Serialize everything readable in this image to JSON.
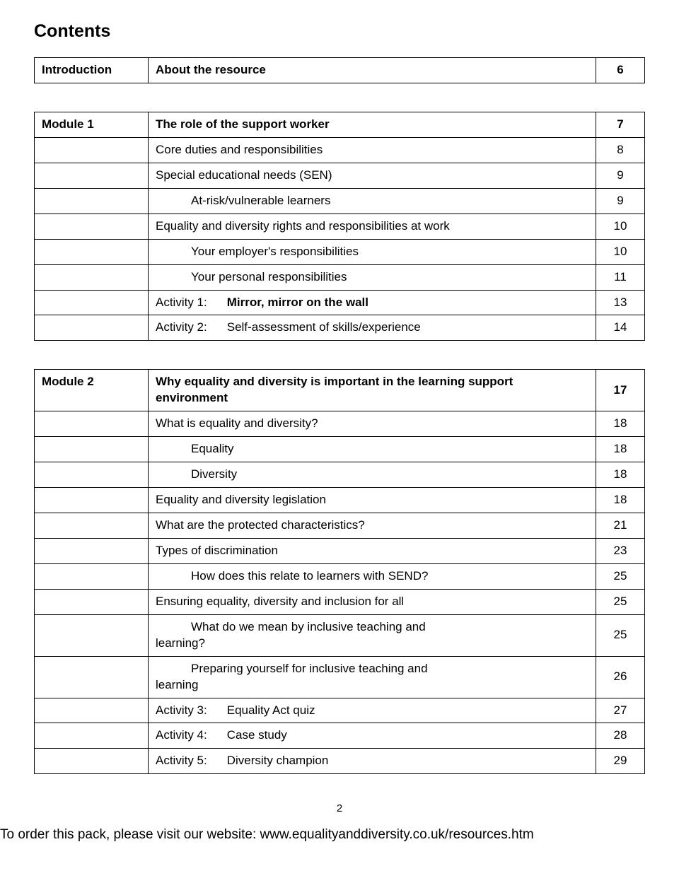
{
  "title": "Contents",
  "intro": {
    "label": "Introduction",
    "text": "About the resource",
    "page": "6"
  },
  "module1": {
    "label": "Module 1",
    "heading": "The role of the support worker",
    "heading_page": "7",
    "rows": [
      {
        "text": "Core duties and responsibilities",
        "page": "8",
        "indent": 0
      },
      {
        "text": "Special educational needs (SEN)",
        "page": "9",
        "indent": 0
      },
      {
        "text": "At-risk/vulnerable learners",
        "page": "9",
        "indent": 1
      },
      {
        "text": "Equality and diversity rights and responsibilities at work",
        "page": "10",
        "indent": 0
      },
      {
        "text": "Your employer's responsibilities",
        "page": "10",
        "indent": 1
      },
      {
        "text": "Your personal responsibilities",
        "page": "11",
        "indent": 1
      },
      {
        "activity_label": "Activity 1:",
        "activity_text": "Mirror, mirror on the wall",
        "page": "13"
      },
      {
        "activity_label": "Activity 2:",
        "activity_text": "Self-assessment of skills/experience",
        "page": "14"
      }
    ]
  },
  "module2": {
    "label": "Module 2",
    "heading": "Why equality and diversity is important in the learning support environment",
    "heading_page": "17",
    "rows": [
      {
        "text": "What is equality and diversity?",
        "page": "18",
        "indent": 0
      },
      {
        "text": "Equality",
        "page": "18",
        "indent": 1
      },
      {
        "text": "Diversity",
        "page": "18",
        "indent": 1
      },
      {
        "text": "Equality and diversity legislation",
        "page": "18",
        "indent": 0
      },
      {
        "text": "What are the protected characteristics?",
        "page": "21",
        "indent": 0
      },
      {
        "text": "Types of discrimination",
        "page": "23",
        "indent": 0
      },
      {
        "text": "How does this relate to learners with SEND?",
        "page": "25",
        "indent": 1
      },
      {
        "text": "Ensuring equality, diversity and inclusion for all",
        "page": "25",
        "indent": 0
      },
      {
        "pre": "What do we mean by inclusive teaching and",
        "post": "learning?",
        "page": "25",
        "wrap": true
      },
      {
        "pre": "Preparing yourself for inclusive teaching and",
        "post": "learning",
        "page": "26",
        "wrap": true
      },
      {
        "activity_label": "Activity 3:",
        "activity_text": "Equality Act quiz",
        "page": "27"
      },
      {
        "activity_label": "Activity 4:",
        "activity_text": "Case study",
        "page": "28"
      },
      {
        "activity_label": "Activity 5:",
        "activity_text": "Diversity champion",
        "page": "29"
      }
    ]
  },
  "page_number": "2",
  "footer": "To order this pack, please visit our website: www.equalityanddiversity.co.uk/resources.htm"
}
